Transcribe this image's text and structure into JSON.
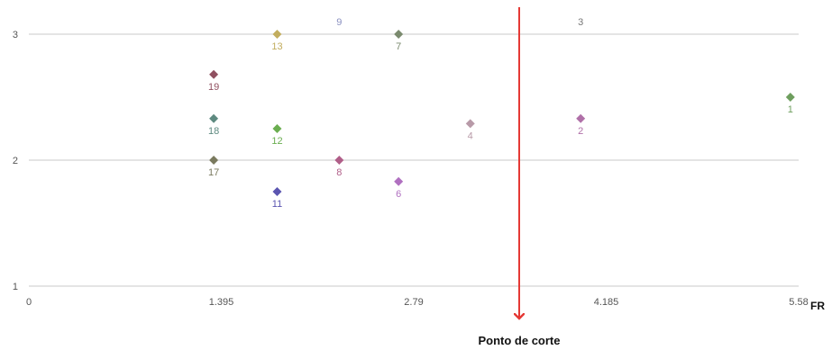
{
  "chart_data": {
    "type": "scatter",
    "title": "",
    "xlabel": "FR",
    "ylabel": "",
    "xlim": [
      0,
      5.58
    ],
    "ylim": [
      1,
      3
    ],
    "x_ticks": [
      "0",
      "1.395",
      "2.79",
      "4.185",
      "5.58"
    ],
    "x_tick_values": [
      0,
      1.395,
      2.79,
      4.185,
      5.58
    ],
    "y_ticks": [
      "1",
      "2",
      "3"
    ],
    "y_tick_values": [
      1,
      2,
      3
    ],
    "grid": "horizontal",
    "legend": "none",
    "points": [
      {
        "label": "1",
        "x": 5.52,
        "y": 2.5,
        "color": "#6e9e5e"
      },
      {
        "label": "2",
        "x": 4.0,
        "y": 2.33,
        "color": "#b070a8"
      },
      {
        "label": "3",
        "x": 4.0,
        "y": 3.1,
        "color": "#777777",
        "hidden_marker": true
      },
      {
        "label": "4",
        "x": 3.2,
        "y": 2.29,
        "color": "#b89aa8"
      },
      {
        "label": "6",
        "x": 2.68,
        "y": 1.83,
        "color": "#b070c0"
      },
      {
        "label": "7",
        "x": 2.68,
        "y": 3.0,
        "color": "#7a8a6e"
      },
      {
        "label": "8",
        "x": 2.25,
        "y": 2.0,
        "color": "#b05e88"
      },
      {
        "label": "9",
        "x": 2.25,
        "y": 3.1,
        "color": "#8a90c0",
        "hidden_marker": true
      },
      {
        "label": "11",
        "x": 1.8,
        "y": 1.75,
        "color": "#5b55b0"
      },
      {
        "label": "12",
        "x": 1.8,
        "y": 2.25,
        "color": "#6aae50"
      },
      {
        "label": "13",
        "x": 1.8,
        "y": 3.0,
        "color": "#c2ad5e"
      },
      {
        "label": "17",
        "x": 1.34,
        "y": 2.0,
        "color": "#7a7a5e"
      },
      {
        "label": "18",
        "x": 1.34,
        "y": 2.33,
        "color": "#5e8a80"
      },
      {
        "label": "19",
        "x": 1.34,
        "y": 2.68,
        "color": "#905060"
      }
    ],
    "annotations": [
      {
        "text": "Ponto de corte",
        "x": 3.5,
        "color": "#e53935"
      }
    ]
  }
}
